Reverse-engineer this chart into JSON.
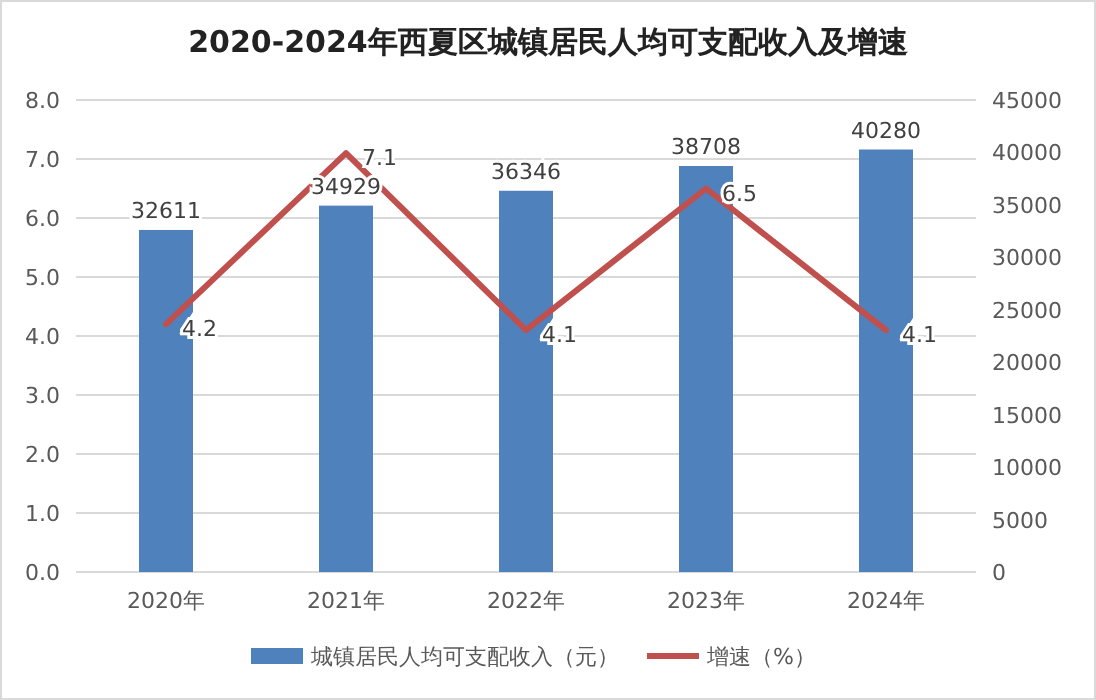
{
  "chart_data": {
    "type": "bar",
    "title": "2020-2024年西夏区城镇居民人均可支配收入及增速",
    "categories": [
      "2020年",
      "2021年",
      "2022年",
      "2023年",
      "2024年"
    ],
    "series": [
      {
        "name": "城镇居民人均可支配收入（元）",
        "color": "#4f81bd",
        "axis": "y2",
        "values": [
          32611,
          34929,
          36346,
          38708,
          40280
        ]
      },
      {
        "name": "增速（%）",
        "type": "line",
        "color": "#c0504d",
        "axis": "y",
        "values": [
          4.2,
          7.1,
          4.1,
          6.5,
          4.1
        ]
      }
    ],
    "ylim": [
      0,
      8
    ],
    "yticks": [
      {
        "value": 0,
        "label": "0.0"
      },
      {
        "value": 1,
        "label": "1.0"
      },
      {
        "value": 2,
        "label": "2.0"
      },
      {
        "value": 3,
        "label": "3.0"
      },
      {
        "value": 4,
        "label": "4.0"
      },
      {
        "value": 5,
        "label": "5.0"
      },
      {
        "value": 6,
        "label": "6.0"
      },
      {
        "value": 7,
        "label": "7.0"
      },
      {
        "value": 8,
        "label": "8.0"
      }
    ],
    "y2lim": [
      0,
      45000
    ],
    "y2ticks": [
      0,
      5000,
      10000,
      15000,
      20000,
      25000,
      30000,
      35000,
      40000,
      45000
    ],
    "grid": "y",
    "legend": "bottom",
    "data_labels": true,
    "marker": "none"
  }
}
